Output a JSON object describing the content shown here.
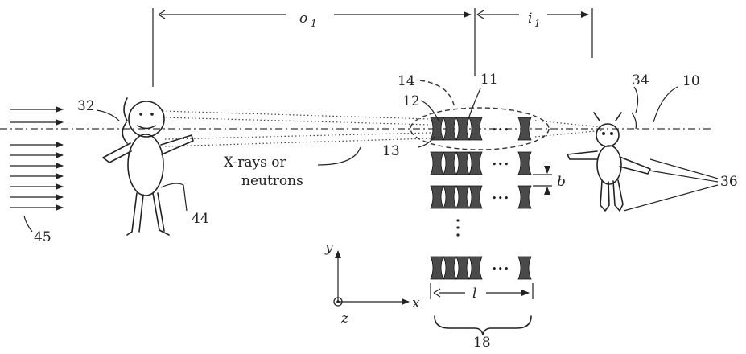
{
  "labels": {
    "o1": "o",
    "o1_sub": "1",
    "i1": "i",
    "i1_sub": "1",
    "ref_45": "45",
    "ref_32": "32",
    "ref_44": "44",
    "ref_14": "14",
    "ref_11": "11",
    "ref_12": "12",
    "ref_13": "13",
    "ref_34": "34",
    "ref_10": "10",
    "ref_36": "36",
    "ref_18": "18",
    "beam_line1": "X-rays or",
    "beam_line2": "neutrons",
    "dim_b": "b",
    "dim_l": "l",
    "axis_x": "x",
    "axis_y": "y",
    "axis_z": "z",
    "ellipsis_dots": "•••",
    "vertical_dots": "⋮"
  }
}
